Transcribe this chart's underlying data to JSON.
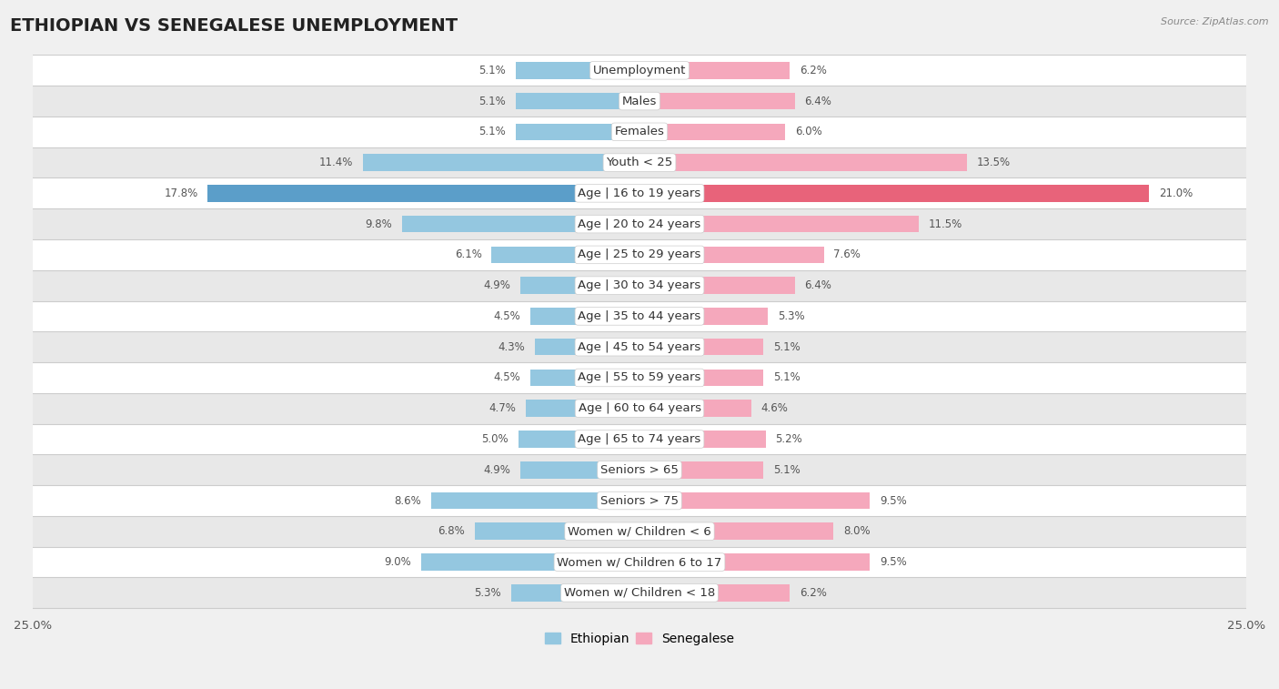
{
  "title": "ETHIOPIAN VS SENEGALESE UNEMPLOYMENT",
  "source": "Source: ZipAtlas.com",
  "categories": [
    "Unemployment",
    "Males",
    "Females",
    "Youth < 25",
    "Age | 16 to 19 years",
    "Age | 20 to 24 years",
    "Age | 25 to 29 years",
    "Age | 30 to 34 years",
    "Age | 35 to 44 years",
    "Age | 45 to 54 years",
    "Age | 55 to 59 years",
    "Age | 60 to 64 years",
    "Age | 65 to 74 years",
    "Seniors > 65",
    "Seniors > 75",
    "Women w/ Children < 6",
    "Women w/ Children 6 to 17",
    "Women w/ Children < 18"
  ],
  "ethiopian": [
    5.1,
    5.1,
    5.1,
    11.4,
    17.8,
    9.8,
    6.1,
    4.9,
    4.5,
    4.3,
    4.5,
    4.7,
    5.0,
    4.9,
    8.6,
    6.8,
    9.0,
    5.3
  ],
  "senegalese": [
    6.2,
    6.4,
    6.0,
    13.5,
    21.0,
    11.5,
    7.6,
    6.4,
    5.3,
    5.1,
    5.1,
    4.6,
    5.2,
    5.1,
    9.5,
    8.0,
    9.5,
    6.2
  ],
  "ethiopian_color": "#94C7E0",
  "senegalese_color": "#F5A8BC",
  "highlight_ethiopian_color": "#5B9EC9",
  "highlight_senegalese_color": "#E8637A",
  "axis_max": 25.0,
  "background_color": "#f0f0f0",
  "row_bg_white": "#ffffff",
  "row_bg_gray": "#e8e8e8",
  "separator_color": "#cccccc",
  "title_fontsize": 14,
  "label_fontsize": 9.5,
  "value_fontsize": 8.5,
  "legend_fontsize": 10
}
